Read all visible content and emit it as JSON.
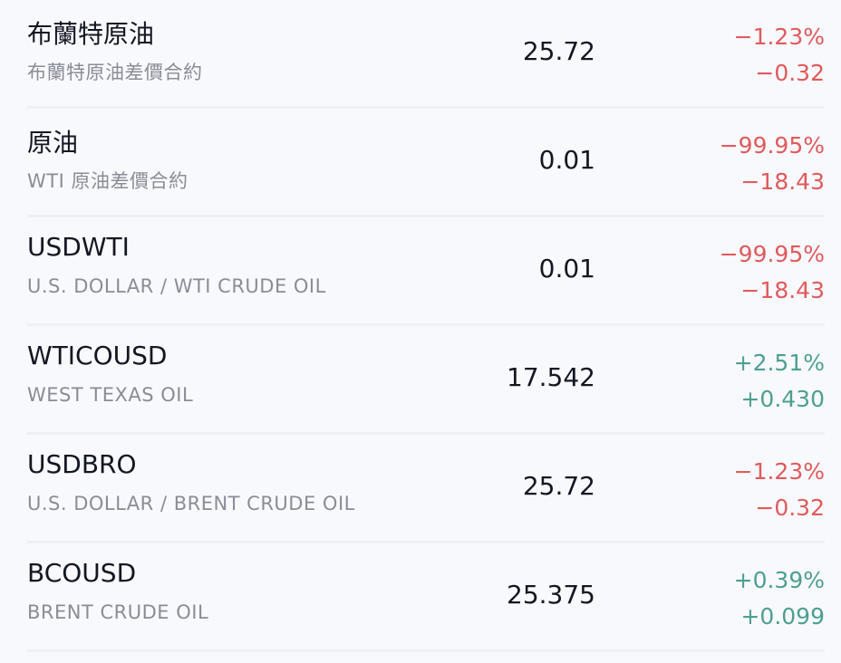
{
  "colors": {
    "negative": "#e05a5c",
    "positive": "#4e9f92"
  },
  "rows": [
    {
      "symbol": "布蘭特原油",
      "description": "布蘭特原油差價合約",
      "price": "25.72",
      "change_pct": "−1.23%",
      "change": "−0.32",
      "direction": "down"
    },
    {
      "symbol": "原油",
      "description": "WTI 原油差價合約",
      "price": "0.01",
      "change_pct": "−99.95%",
      "change": "−18.43",
      "direction": "down"
    },
    {
      "symbol": "USDWTI",
      "description": "U.S. DOLLAR / WTI CRUDE OIL",
      "price": "0.01",
      "change_pct": "−99.95%",
      "change": "−18.43",
      "direction": "down"
    },
    {
      "symbol": "WTICOUSD",
      "description": "WEST TEXAS OIL",
      "price": "17.542",
      "change_pct": "+2.51%",
      "change": "+0.430",
      "direction": "up"
    },
    {
      "symbol": "USDBRO",
      "description": "U.S. DOLLAR / BRENT CRUDE OIL",
      "price": "25.72",
      "change_pct": "−1.23%",
      "change": "−0.32",
      "direction": "down"
    },
    {
      "symbol": "BCOUSD",
      "description": "BRENT CRUDE OIL",
      "price": "25.375",
      "change_pct": "+0.39%",
      "change": "+0.099",
      "direction": "up"
    }
  ]
}
